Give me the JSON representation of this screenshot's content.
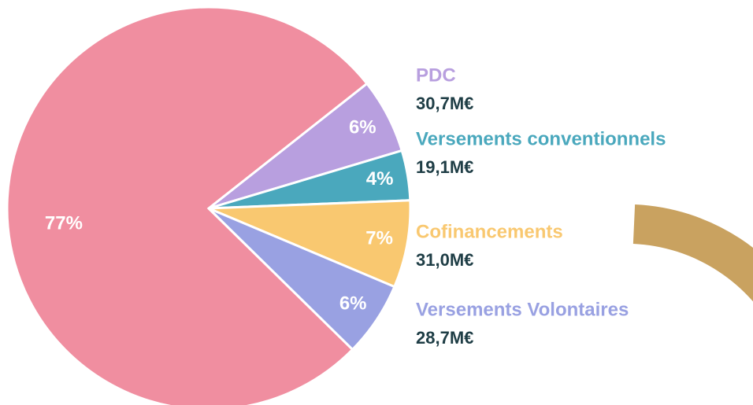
{
  "chart_data": {
    "type": "pie",
    "categories": [
      null,
      "PDC",
      "Versements conventionnels",
      "Cofinancements",
      "Versements Volontaires"
    ],
    "values": [
      77,
      6,
      4,
      7,
      6
    ],
    "value_labels": [
      "77%",
      "6%",
      "4%",
      "7%",
      "6%"
    ],
    "colors": [
      "#f08ea0",
      "#b89fdf",
      "#4aa8bd",
      "#f9c870",
      "#99a1e2"
    ],
    "amount_labels": [
      null,
      "30,7M€",
      "19,1M€",
      "31,0M€",
      "28,7M€"
    ]
  }
}
